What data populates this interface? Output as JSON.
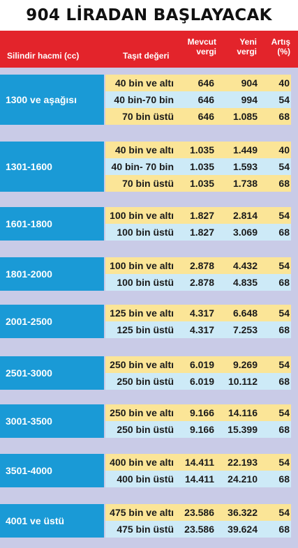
{
  "title": "904 LİRADAN BAŞLAYACAK",
  "header": {
    "cylinder": "Silindir hacmi (cc)",
    "value": "Taşıt değeri",
    "current": "Mevcut vergi",
    "new": "Yeni vergi",
    "increase": "Artış (%)"
  },
  "groups": [
    {
      "label": "1300 ve aşağısı",
      "rows": [
        {
          "value": "40 bin ve altı",
          "current": "646",
          "new": "904",
          "increase": "40"
        },
        {
          "value": "40 bin-70 bin",
          "current": "646",
          "new": "994",
          "increase": "54"
        },
        {
          "value": "70 bin üstü",
          "current": "646",
          "new": "1.085",
          "increase": "68"
        }
      ]
    },
    {
      "label": "1301-1600",
      "rows": [
        {
          "value": "40 bin ve altı",
          "current": "1.035",
          "new": "1.449",
          "increase": "40"
        },
        {
          "value": "40 bin- 70 bin",
          "current": "1.035",
          "new": "1.593",
          "increase": "54"
        },
        {
          "value": "70 bin üstü",
          "current": "1.035",
          "new": "1.738",
          "increase": "68"
        }
      ]
    },
    {
      "label": "1601-1800",
      "rows": [
        {
          "value": "100 bin ve altı",
          "current": "1.827",
          "new": "2.814",
          "increase": "54"
        },
        {
          "value": "100 bin üstü",
          "current": "1.827",
          "new": "3.069",
          "increase": "68"
        }
      ]
    },
    {
      "label": "1801-2000",
      "rows": [
        {
          "value": "100 bin ve altı",
          "current": "2.878",
          "new": "4.432",
          "increase": "54"
        },
        {
          "value": "100 bin üstü",
          "current": "2.878",
          "new": "4.835",
          "increase": "68"
        }
      ]
    },
    {
      "label": "2001-2500",
      "rows": [
        {
          "value": "125 bin ve altı",
          "current": "4.317",
          "new": "6.648",
          "increase": "54"
        },
        {
          "value": "125 bin üstü",
          "current": "4.317",
          "new": "7.253",
          "increase": "68"
        }
      ]
    },
    {
      "label": "2501-3000",
      "rows": [
        {
          "value": "250 bin ve altı",
          "current": "6.019",
          "new": "9.269",
          "increase": "54"
        },
        {
          "value": "250 bin üstü",
          "current": "6.019",
          "new": "10.112",
          "increase": "68"
        }
      ]
    },
    {
      "label": "3001-3500",
      "rows": [
        {
          "value": "250 bin ve altı",
          "current": "9.166",
          "new": "14.116",
          "increase": "54"
        },
        {
          "value": "250 bin üstü",
          "current": "9.166",
          "new": "15.399",
          "increase": "68"
        }
      ]
    },
    {
      "label": "3501-4000",
      "rows": [
        {
          "value": "400 bin ve altı",
          "current": "14.411",
          "new": "22.193",
          "increase": "54"
        },
        {
          "value": "400 bin üstü",
          "current": "14.411",
          "new": "24.210",
          "increase": "68"
        }
      ]
    },
    {
      "label": "4001 ve üstü",
      "rows": [
        {
          "value": "475 bin ve altı",
          "current": "23.586",
          "new": "36.322",
          "increase": "54"
        },
        {
          "value": "475 bin üstü",
          "current": "23.586",
          "new": "39.624",
          "increase": "68"
        }
      ]
    }
  ]
}
